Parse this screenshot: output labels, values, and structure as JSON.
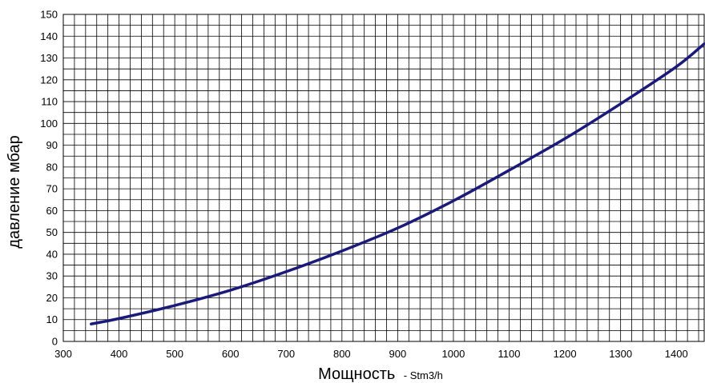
{
  "chart_data": {
    "type": "line",
    "title": "",
    "xlabel": "Мощность",
    "xlabel_unit": "- Stm3/h",
    "ylabel": "давление мбар",
    "xlim": [
      300,
      1450
    ],
    "ylim": [
      0,
      150
    ],
    "x_ticks": [
      300,
      400,
      500,
      600,
      700,
      800,
      900,
      1000,
      1100,
      1200,
      1300,
      1400
    ],
    "y_ticks": [
      0,
      10,
      20,
      30,
      40,
      50,
      60,
      70,
      80,
      90,
      100,
      110,
      120,
      130,
      140,
      150
    ],
    "minor_grid_x_step": 20,
    "minor_grid_y_step": 5,
    "grid": true,
    "series": [
      {
        "color": "#1a1a7a",
        "x": [
          350,
          400,
          500,
          600,
          700,
          800,
          900,
          1000,
          1100,
          1200,
          1300,
          1400,
          1450
        ],
        "y": [
          8,
          10.5,
          16.5,
          23.5,
          32,
          41.5,
          52,
          64.5,
          78.5,
          93,
          109,
          126,
          136.5
        ]
      }
    ]
  }
}
